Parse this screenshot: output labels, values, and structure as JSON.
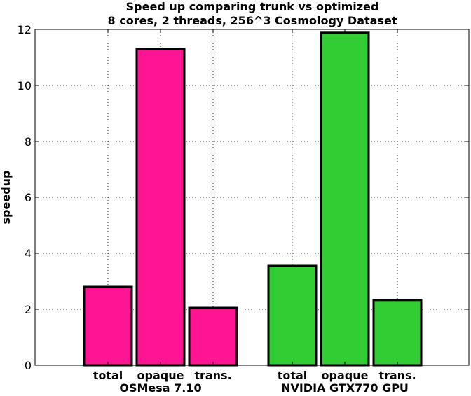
{
  "chart_data": {
    "type": "bar",
    "title": "Speed up comparing trunk vs optimized",
    "subtitle": "8 cores, 2 threads, 256^3 Cosmology Dataset",
    "xlabel": "",
    "ylabel": "speedup",
    "ylim": [
      0,
      12
    ],
    "yticks": [
      0,
      2,
      4,
      6,
      8,
      10,
      12
    ],
    "grid": true,
    "groups": [
      {
        "name": "OSMesa 7.10",
        "color": "#ff1493",
        "categories": [
          "total",
          "opaque",
          "trans."
        ],
        "values": [
          2.8,
          11.3,
          2.05
        ]
      },
      {
        "name": "NVIDIA GTX770 GPU",
        "color": "#32cd32",
        "categories": [
          "total",
          "opaque",
          "trans."
        ],
        "values": [
          3.55,
          11.88,
          2.33
        ]
      }
    ]
  }
}
